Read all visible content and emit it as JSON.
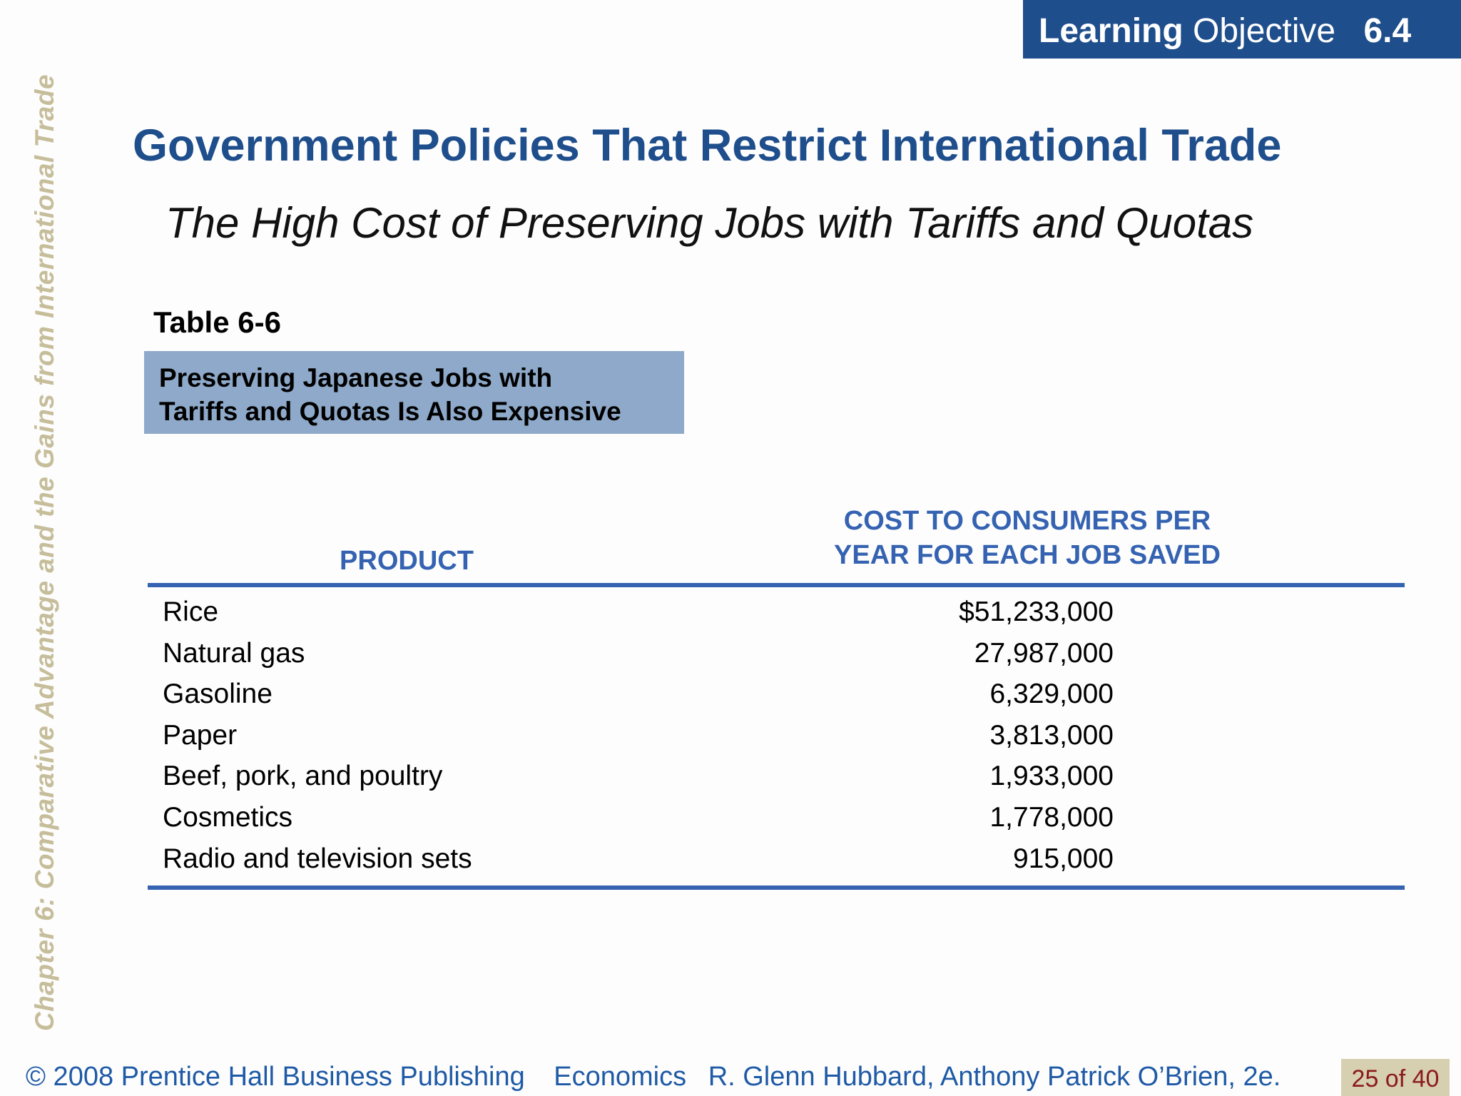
{
  "sidebar": {
    "chapter_text": "Chapter 6:  Comparative Advantage and the Gains from International Trade"
  },
  "badge": {
    "learning": "Learning",
    "objective": "Objective",
    "number": "6.4"
  },
  "slide": {
    "title": "Government Policies That Restrict International Trade",
    "subtitle": "The High Cost of Preserving Jobs with Tariffs and Quotas"
  },
  "table": {
    "number": "Table 6-6",
    "caption_line1": "Preserving Japanese Jobs with",
    "caption_line2": "Tariffs and Quotas Is Also Expensive",
    "header_product": "PRODUCT",
    "header_cost_line1": "COST TO CONSUMERS PER",
    "header_cost_line2": "YEAR FOR EACH JOB SAVED",
    "rows": [
      {
        "product": "Rice",
        "cost": "$51,233,000"
      },
      {
        "product": "Natural gas",
        "cost": "27,987,000"
      },
      {
        "product": "Gasoline",
        "cost": "6,329,000"
      },
      {
        "product": "Paper",
        "cost": "3,813,000"
      },
      {
        "product": "Beef, pork, and poultry",
        "cost": "1,933,000"
      },
      {
        "product": "Cosmetics",
        "cost": "1,778,000"
      },
      {
        "product": "Radio and television sets",
        "cost": "915,000"
      }
    ]
  },
  "footer": {
    "copyright": "© 2008 Prentice Hall Business Publishing",
    "book": "Economics",
    "authors": "R. Glenn Hubbard, Anthony Patrick O’Brien, 2e.",
    "page": "25 of 40"
  },
  "colors": {
    "brand_blue": "#1f4e8c",
    "header_blue": "#3563b1",
    "caption_bg": "#8ea9c9",
    "side_text": "#c6bd9a",
    "page_box_bg": "#d6cfb0",
    "page_text": "#8b1a1a"
  }
}
